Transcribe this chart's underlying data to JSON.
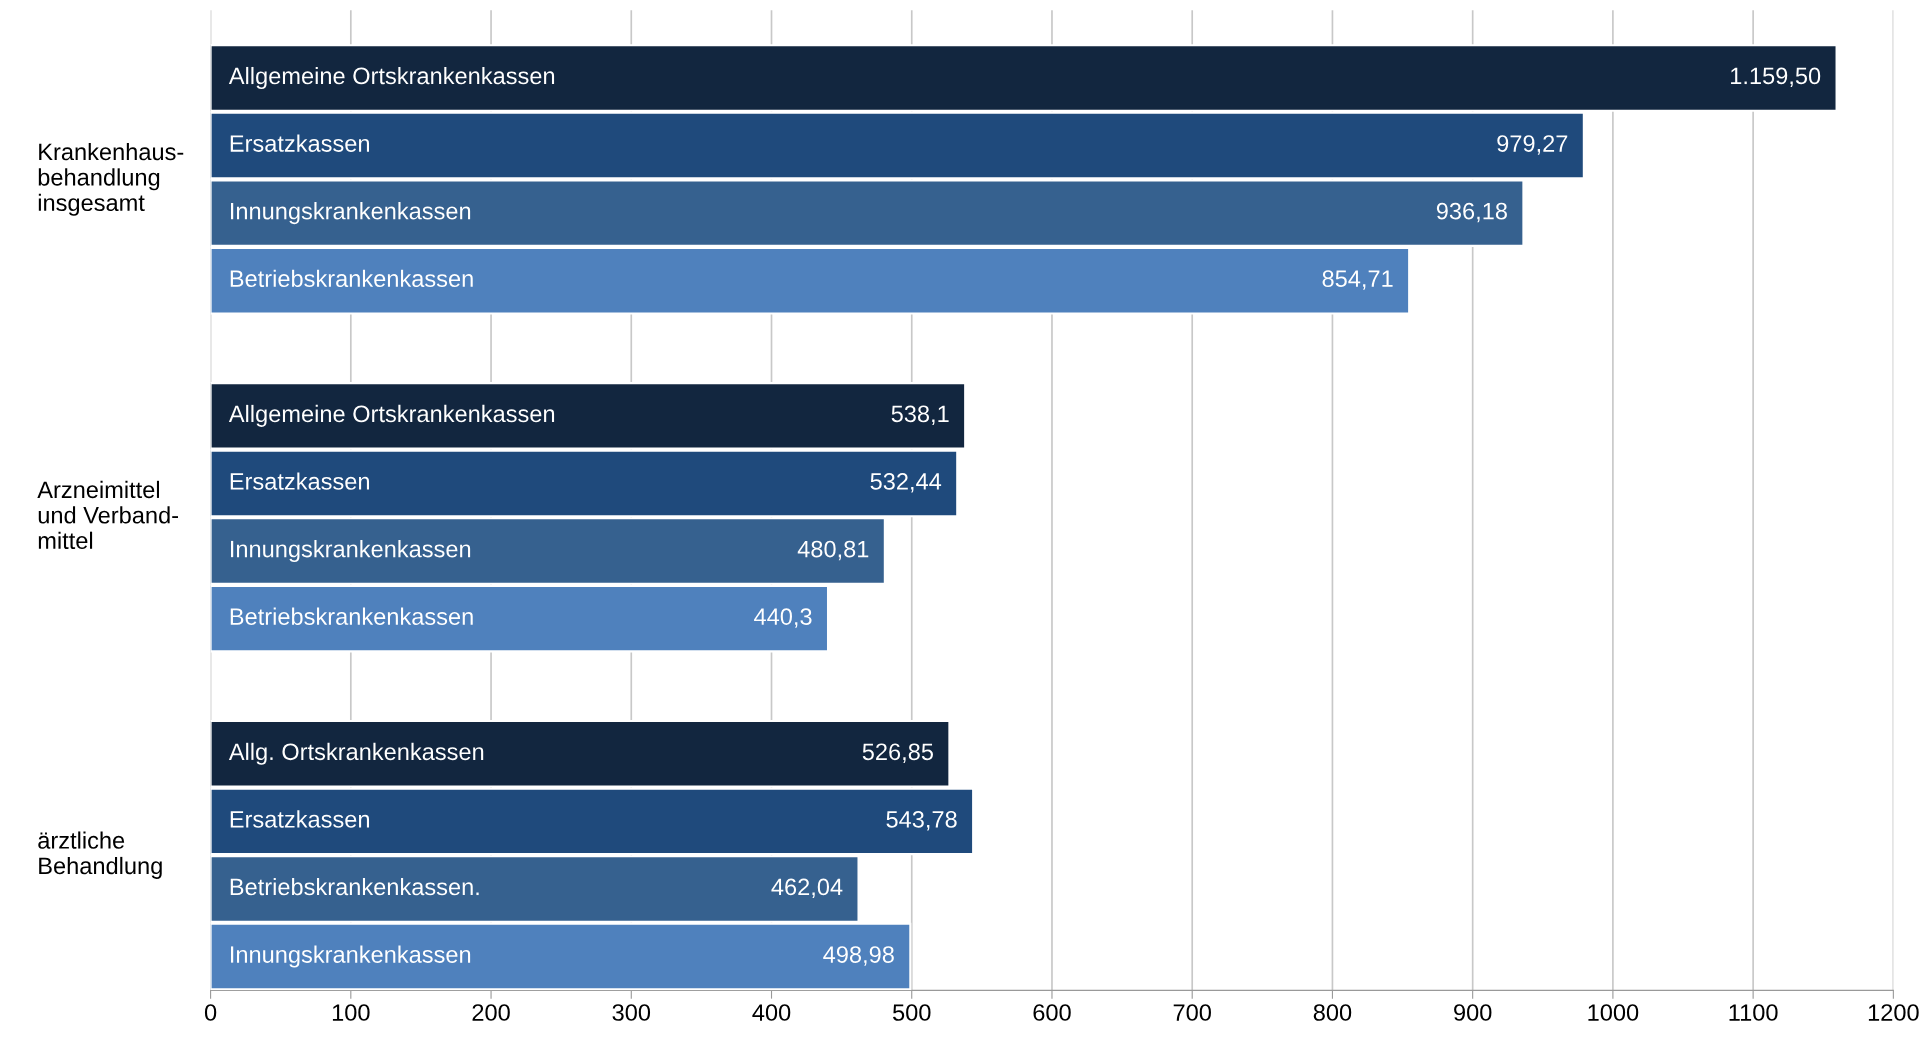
{
  "chart_data": {
    "type": "bar",
    "orientation": "horizontal",
    "categories": [
      "Allgemeine Ortskrankenkassen",
      "Ersatzkassen",
      "Innungskrankenkassen",
      "Betriebskrankenkassen",
      null,
      "Allgemeine Ortskrankenkassen",
      "Ersatzkassen",
      "Innungskrankenkassen",
      "Betriebskrankenkassen",
      null,
      "Allg. Ortskrankenkassen",
      "Ersatzkassen",
      "Betriebskrankenkassen.",
      "Innungskrankenkassen"
    ],
    "values": [
      1159.5,
      979.27,
      936.18,
      854.71,
      null,
      538.1,
      532.44,
      480.81,
      440.3,
      null,
      526.85,
      543.78,
      462.04,
      498.98
    ],
    "value_labels": [
      "1.159,50",
      "979,27",
      "936,18",
      "854,71",
      null,
      "538,1",
      "532,44",
      "480,81",
      "440,3",
      null,
      "526,85",
      "543,78",
      "462,04",
      "498,98"
    ],
    "colors": [
      "#12263f",
      "#1f4a7c",
      "#36618f",
      "#4f81bd",
      null,
      "#12263f",
      "#1f4a7c",
      "#36618f",
      "#4f81bd",
      null,
      "#12263f",
      "#1f4a7c",
      "#36618f",
      "#4f81bd"
    ],
    "annotations": [
      "Krankenhaus-\nbehandlung\ninsgesamt",
      "Arzneimittel\nund Verband-\nmittel",
      "ärztliche\nBehandlung"
    ],
    "xlim": [
      0,
      1200
    ],
    "xticks": [
      0,
      100,
      200,
      300,
      400,
      500,
      600,
      700,
      800,
      900,
      1000,
      1100,
      1200
    ],
    "grid": "x",
    "tick_labels": "x"
  }
}
